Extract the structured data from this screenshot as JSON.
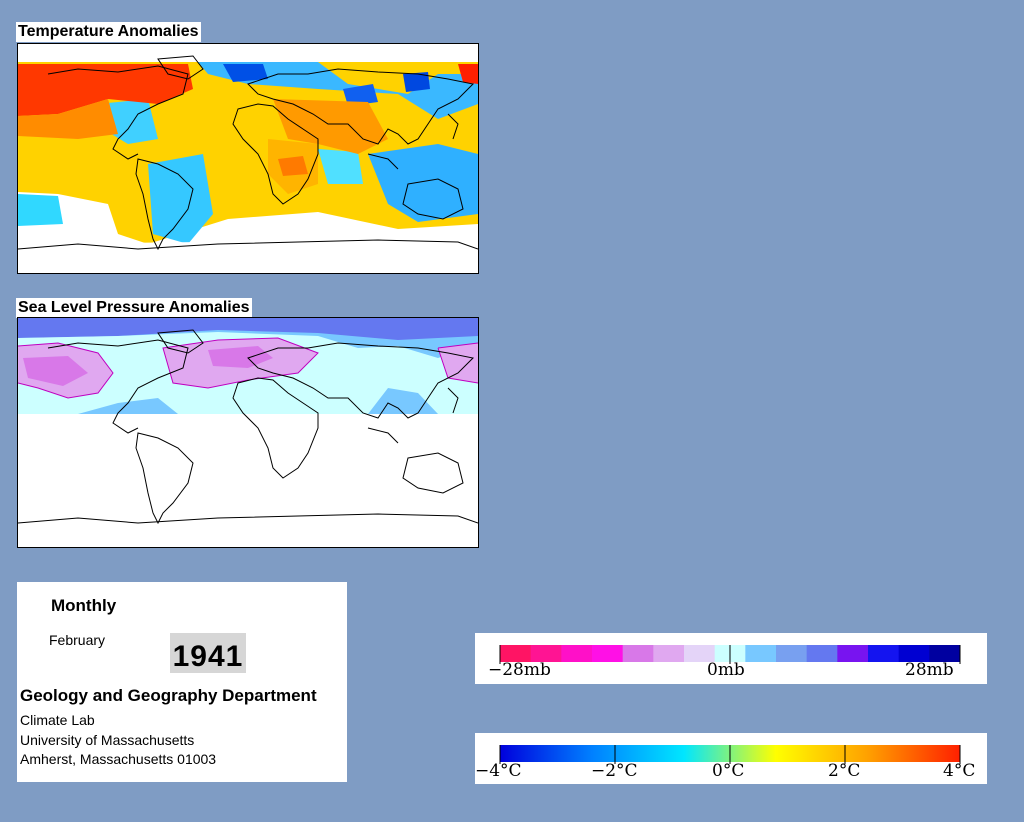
{
  "temperature_map": {
    "title": "Temperature Anomalies"
  },
  "pressure_map": {
    "title": "Sea Level Pressure Anomalies"
  },
  "info": {
    "period": "Monthly",
    "month": "February",
    "year": "1941",
    "department": "Geology and Geography Department",
    "lab": "Climate Lab",
    "university": "University of Massachusetts",
    "address": "Amherst, Massachusetts 01003"
  },
  "pressure_legend": {
    "labels": [
      "−28mb",
      "0mb",
      "28mb"
    ],
    "colors": [
      "#ff1464",
      "#ff1493",
      "#ff10c8",
      "#ff10e6",
      "#d878e8",
      "#e0a8f0",
      "#e4d4f8",
      "#ccffff",
      "#78c8ff",
      "#78a0f0",
      "#6478f0",
      "#7814f0",
      "#1414f0",
      "#0000d2",
      "#0000a0"
    ]
  },
  "temperature_legend": {
    "labels": [
      "−4°C",
      "−2°C",
      "0°C",
      "2°C",
      "4°C"
    ],
    "gradient_stops": [
      "#0000dc",
      "#0080ff",
      "#00e6ff",
      "#ffff00",
      "#ffa000",
      "#ff2000"
    ]
  },
  "colors": {
    "background": "#7f9cc4",
    "warm_strong": "#ff2000",
    "warm": "#ffa000",
    "mild_warm": "#ffe600",
    "mild_cool": "#00e6ff",
    "cool": "#0080ff",
    "cool_strong": "#0000dc",
    "high_pressure": "#e0a8f0",
    "low_pressure": "#78c8ff"
  }
}
